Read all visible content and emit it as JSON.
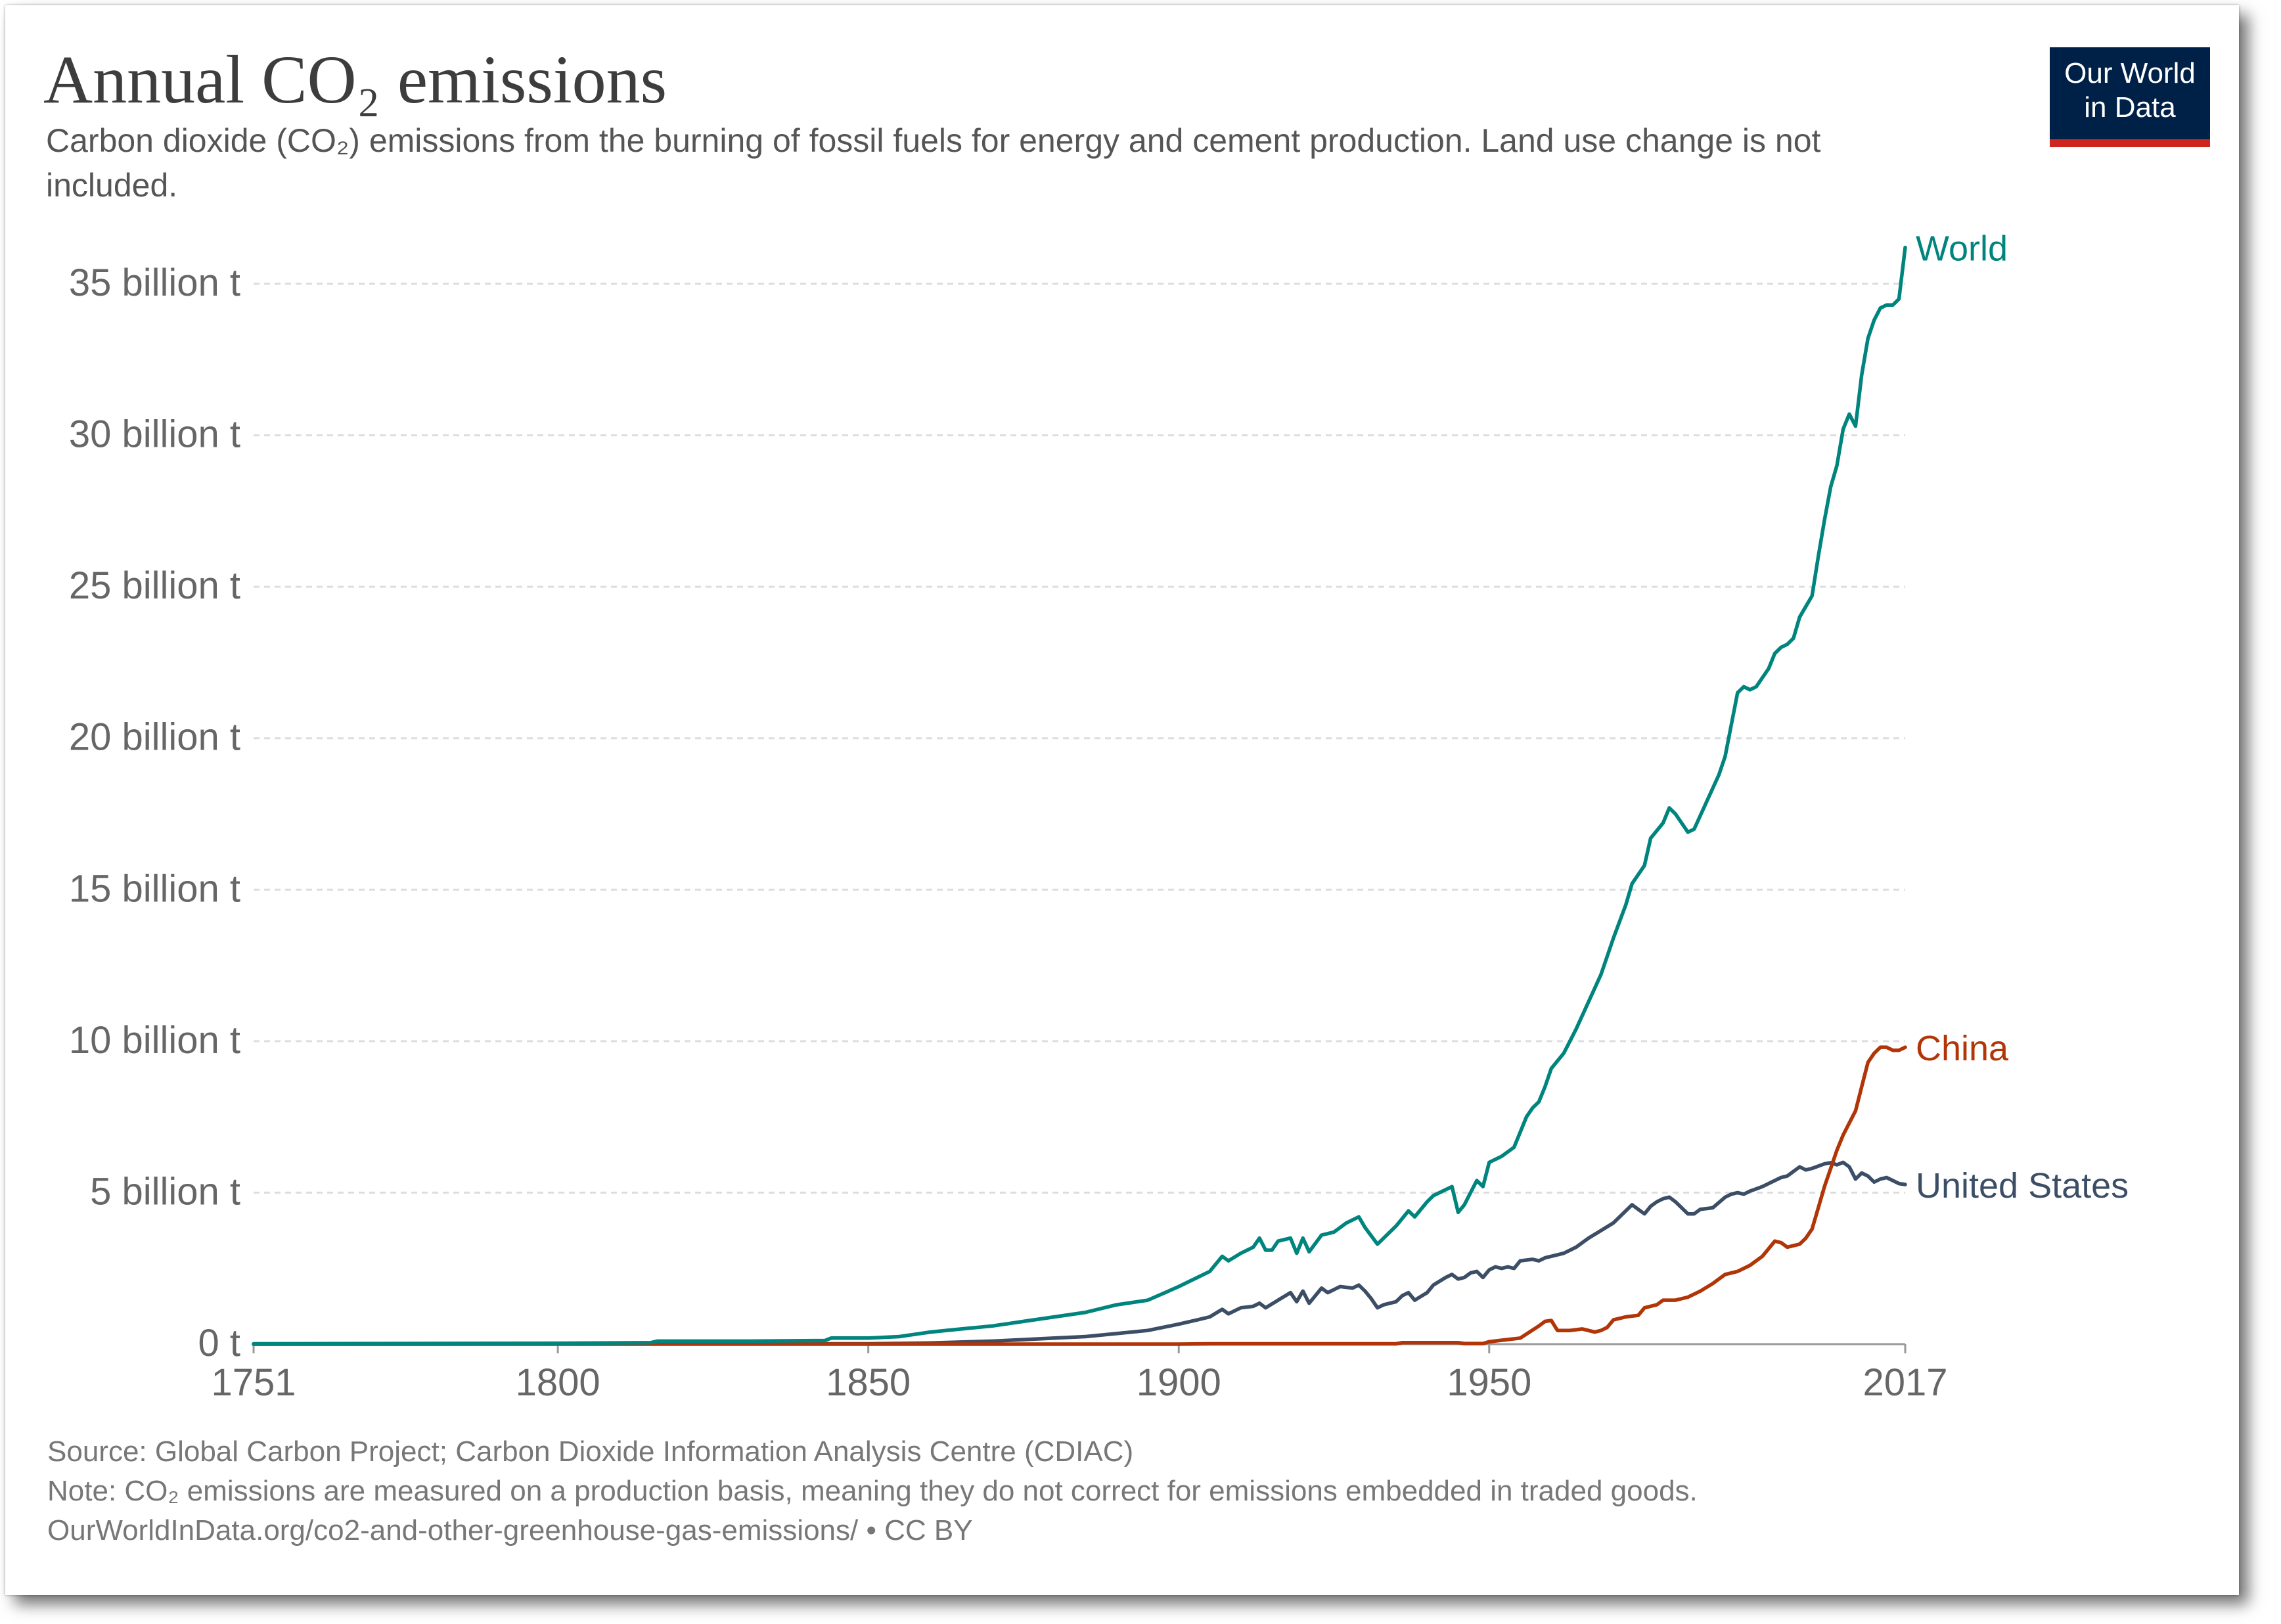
{
  "header": {
    "title": "Annual CO₂ emissions",
    "subtitle": "Carbon dioxide (CO₂) emissions from the burning of fossil fuels for energy and cement production. Land use change is not included."
  },
  "logo": {
    "line1": "Our World",
    "line2": "in Data",
    "bg_color": "#002147",
    "stripe_color": "#ce261e"
  },
  "footer": {
    "source": "Source: Global Carbon Project; Carbon Dioxide Information Analysis Centre (CDIAC)",
    "note": "Note: CO₂ emissions are measured on a production basis, meaning they do not correct for emissions embedded in traded goods.",
    "url": "OurWorldInData.org/co2-and-other-greenhouse-gas-emissions/ • CC BY"
  },
  "chart_data": {
    "type": "line",
    "xlim": [
      1751,
      2017
    ],
    "ylim": [
      0,
      35
    ],
    "x_ticks": [
      1751,
      1800,
      1850,
      1900,
      1950,
      2017
    ],
    "y_ticks": [
      {
        "value": 0,
        "label": "0 t"
      },
      {
        "value": 5,
        "label": "5 billion t"
      },
      {
        "value": 10,
        "label": "10 billion t"
      },
      {
        "value": 15,
        "label": "15 billion t"
      },
      {
        "value": 20,
        "label": "20 billion t"
      },
      {
        "value": 25,
        "label": "25 billion t"
      },
      {
        "value": 30,
        "label": "30 billion t"
      },
      {
        "value": 35,
        "label": "35 billion t"
      }
    ],
    "y_unit": "billion t",
    "grid": "horizontal dashed",
    "legend": "line-end labels at right",
    "series": [
      {
        "name": "World",
        "color": "#00847e",
        "points": [
          [
            1751,
            0.01
          ],
          [
            1800,
            0.03
          ],
          [
            1815,
            0.05
          ],
          [
            1816,
            0.1
          ],
          [
            1830,
            0.1
          ],
          [
            1843,
            0.12
          ],
          [
            1844,
            0.2
          ],
          [
            1850,
            0.2
          ],
          [
            1855,
            0.25
          ],
          [
            1860,
            0.4
          ],
          [
            1865,
            0.5
          ],
          [
            1870,
            0.6
          ],
          [
            1875,
            0.75
          ],
          [
            1880,
            0.9
          ],
          [
            1885,
            1.05
          ],
          [
            1890,
            1.3
          ],
          [
            1895,
            1.45
          ],
          [
            1900,
            1.9
          ],
          [
            1903,
            2.2
          ],
          [
            1905,
            2.4
          ],
          [
            1907,
            2.9
          ],
          [
            1908,
            2.75
          ],
          [
            1910,
            3.0
          ],
          [
            1912,
            3.2
          ],
          [
            1913,
            3.5
          ],
          [
            1914,
            3.1
          ],
          [
            1915,
            3.1
          ],
          [
            1916,
            3.4
          ],
          [
            1918,
            3.5
          ],
          [
            1919,
            3.0
          ],
          [
            1920,
            3.5
          ],
          [
            1921,
            3.05
          ],
          [
            1923,
            3.6
          ],
          [
            1925,
            3.7
          ],
          [
            1927,
            4.0
          ],
          [
            1929,
            4.2
          ],
          [
            1930,
            3.85
          ],
          [
            1932,
            3.3
          ],
          [
            1934,
            3.7
          ],
          [
            1935,
            3.9
          ],
          [
            1937,
            4.4
          ],
          [
            1938,
            4.2
          ],
          [
            1940,
            4.7
          ],
          [
            1941,
            4.9
          ],
          [
            1943,
            5.1
          ],
          [
            1944,
            5.2
          ],
          [
            1945,
            4.35
          ],
          [
            1946,
            4.6
          ],
          [
            1947,
            5.0
          ],
          [
            1948,
            5.4
          ],
          [
            1949,
            5.2
          ],
          [
            1950,
            6.0
          ],
          [
            1952,
            6.2
          ],
          [
            1954,
            6.5
          ],
          [
            1956,
            7.5
          ],
          [
            1957,
            7.8
          ],
          [
            1958,
            8.0
          ],
          [
            1959,
            8.5
          ],
          [
            1960,
            9.1
          ],
          [
            1962,
            9.6
          ],
          [
            1964,
            10.4
          ],
          [
            1966,
            11.3
          ],
          [
            1968,
            12.2
          ],
          [
            1970,
            13.4
          ],
          [
            1972,
            14.5
          ],
          [
            1973,
            15.2
          ],
          [
            1975,
            15.8
          ],
          [
            1976,
            16.7
          ],
          [
            1978,
            17.2
          ],
          [
            1979,
            17.7
          ],
          [
            1980,
            17.5
          ],
          [
            1982,
            16.9
          ],
          [
            1983,
            17.0
          ],
          [
            1985,
            17.9
          ],
          [
            1987,
            18.8
          ],
          [
            1988,
            19.4
          ],
          [
            1990,
            21.5
          ],
          [
            1991,
            21.7
          ],
          [
            1992,
            21.6
          ],
          [
            1993,
            21.7
          ],
          [
            1995,
            22.3
          ],
          [
            1996,
            22.8
          ],
          [
            1997,
            23.0
          ],
          [
            1998,
            23.1
          ],
          [
            1999,
            23.3
          ],
          [
            2000,
            24.0
          ],
          [
            2002,
            24.7
          ],
          [
            2003,
            26.0
          ],
          [
            2004,
            27.2
          ],
          [
            2005,
            28.3
          ],
          [
            2006,
            29.0
          ],
          [
            2007,
            30.2
          ],
          [
            2008,
            30.7
          ],
          [
            2009,
            30.3
          ],
          [
            2010,
            32.0
          ],
          [
            2011,
            33.2
          ],
          [
            2012,
            33.8
          ],
          [
            2013,
            34.2
          ],
          [
            2014,
            34.3
          ],
          [
            2015,
            34.3
          ],
          [
            2016,
            34.5
          ],
          [
            2017,
            36.2
          ]
        ]
      },
      {
        "name": "China",
        "color": "#b13507",
        "points": [
          [
            1751,
            0
          ],
          [
            1900,
            0
          ],
          [
            1905,
            0.01
          ],
          [
            1935,
            0.01
          ],
          [
            1936,
            0.05
          ],
          [
            1945,
            0.05
          ],
          [
            1946,
            0.02
          ],
          [
            1949,
            0.02
          ],
          [
            1950,
            0.08
          ],
          [
            1955,
            0.2
          ],
          [
            1958,
            0.6
          ],
          [
            1959,
            0.75
          ],
          [
            1960,
            0.78
          ],
          [
            1961,
            0.45
          ],
          [
            1963,
            0.45
          ],
          [
            1965,
            0.5
          ],
          [
            1967,
            0.4
          ],
          [
            1968,
            0.45
          ],
          [
            1969,
            0.55
          ],
          [
            1970,
            0.8
          ],
          [
            1972,
            0.9
          ],
          [
            1974,
            0.95
          ],
          [
            1975,
            1.2
          ],
          [
            1977,
            1.3
          ],
          [
            1978,
            1.45
          ],
          [
            1980,
            1.45
          ],
          [
            1982,
            1.55
          ],
          [
            1984,
            1.75
          ],
          [
            1986,
            2.0
          ],
          [
            1988,
            2.3
          ],
          [
            1990,
            2.4
          ],
          [
            1992,
            2.6
          ],
          [
            1994,
            2.9
          ],
          [
            1996,
            3.4
          ],
          [
            1997,
            3.35
          ],
          [
            1998,
            3.2
          ],
          [
            2000,
            3.3
          ],
          [
            2001,
            3.5
          ],
          [
            2002,
            3.8
          ],
          [
            2003,
            4.5
          ],
          [
            2004,
            5.2
          ],
          [
            2005,
            5.8
          ],
          [
            2006,
            6.4
          ],
          [
            2007,
            6.9
          ],
          [
            2008,
            7.3
          ],
          [
            2009,
            7.7
          ],
          [
            2010,
            8.5
          ],
          [
            2011,
            9.3
          ],
          [
            2012,
            9.6
          ],
          [
            2013,
            9.8
          ],
          [
            2014,
            9.8
          ],
          [
            2015,
            9.7
          ],
          [
            2016,
            9.7
          ],
          [
            2017,
            9.8
          ]
        ]
      },
      {
        "name": "United States",
        "color": "#3c4e66",
        "points": [
          [
            1751,
            0
          ],
          [
            1850,
            0.01
          ],
          [
            1860,
            0.04
          ],
          [
            1870,
            0.1
          ],
          [
            1875,
            0.15
          ],
          [
            1880,
            0.2
          ],
          [
            1885,
            0.25
          ],
          [
            1890,
            0.35
          ],
          [
            1895,
            0.45
          ],
          [
            1900,
            0.66
          ],
          [
            1903,
            0.8
          ],
          [
            1905,
            0.9
          ],
          [
            1907,
            1.15
          ],
          [
            1908,
            1.0
          ],
          [
            1910,
            1.2
          ],
          [
            1912,
            1.25
          ],
          [
            1913,
            1.35
          ],
          [
            1914,
            1.2
          ],
          [
            1916,
            1.45
          ],
          [
            1918,
            1.7
          ],
          [
            1919,
            1.4
          ],
          [
            1920,
            1.75
          ],
          [
            1921,
            1.35
          ],
          [
            1923,
            1.85
          ],
          [
            1924,
            1.7
          ],
          [
            1926,
            1.9
          ],
          [
            1928,
            1.85
          ],
          [
            1929,
            1.95
          ],
          [
            1930,
            1.75
          ],
          [
            1931,
            1.5
          ],
          [
            1932,
            1.2
          ],
          [
            1933,
            1.3
          ],
          [
            1935,
            1.4
          ],
          [
            1936,
            1.6
          ],
          [
            1937,
            1.7
          ],
          [
            1938,
            1.45
          ],
          [
            1940,
            1.7
          ],
          [
            1941,
            1.95
          ],
          [
            1943,
            2.2
          ],
          [
            1944,
            2.3
          ],
          [
            1945,
            2.15
          ],
          [
            1946,
            2.2
          ],
          [
            1947,
            2.35
          ],
          [
            1948,
            2.4
          ],
          [
            1949,
            2.2
          ],
          [
            1950,
            2.45
          ],
          [
            1951,
            2.55
          ],
          [
            1952,
            2.5
          ],
          [
            1953,
            2.55
          ],
          [
            1954,
            2.5
          ],
          [
            1955,
            2.75
          ],
          [
            1957,
            2.8
          ],
          [
            1958,
            2.75
          ],
          [
            1959,
            2.85
          ],
          [
            1960,
            2.9
          ],
          [
            1962,
            3.0
          ],
          [
            1964,
            3.2
          ],
          [
            1966,
            3.5
          ],
          [
            1968,
            3.75
          ],
          [
            1970,
            4.0
          ],
          [
            1972,
            4.4
          ],
          [
            1973,
            4.6
          ],
          [
            1974,
            4.45
          ],
          [
            1975,
            4.3
          ],
          [
            1976,
            4.55
          ],
          [
            1977,
            4.7
          ],
          [
            1978,
            4.8
          ],
          [
            1979,
            4.85
          ],
          [
            1980,
            4.7
          ],
          [
            1981,
            4.5
          ],
          [
            1982,
            4.3
          ],
          [
            1983,
            4.3
          ],
          [
            1984,
            4.45
          ],
          [
            1986,
            4.5
          ],
          [
            1988,
            4.85
          ],
          [
            1989,
            4.95
          ],
          [
            1990,
            5.0
          ],
          [
            1991,
            4.95
          ],
          [
            1992,
            5.05
          ],
          [
            1994,
            5.2
          ],
          [
            1996,
            5.4
          ],
          [
            1997,
            5.5
          ],
          [
            1998,
            5.55
          ],
          [
            2000,
            5.85
          ],
          [
            2001,
            5.75
          ],
          [
            2002,
            5.8
          ],
          [
            2004,
            5.95
          ],
          [
            2005,
            5.99
          ],
          [
            2006,
            5.92
          ],
          [
            2007,
            6.0
          ],
          [
            2008,
            5.85
          ],
          [
            2009,
            5.45
          ],
          [
            2010,
            5.65
          ],
          [
            2011,
            5.55
          ],
          [
            2012,
            5.35
          ],
          [
            2013,
            5.45
          ],
          [
            2014,
            5.5
          ],
          [
            2015,
            5.4
          ],
          [
            2016,
            5.3
          ],
          [
            2017,
            5.27
          ]
        ]
      }
    ]
  }
}
